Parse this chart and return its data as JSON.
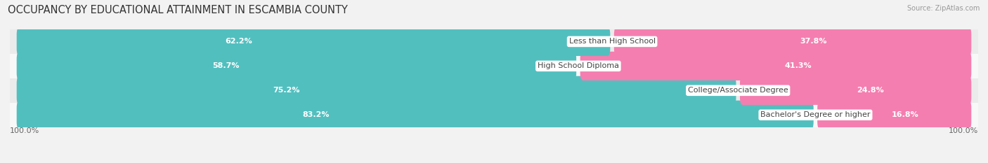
{
  "title": "OCCUPANCY BY EDUCATIONAL ATTAINMENT IN ESCAMBIA COUNTY",
  "source": "Source: ZipAtlas.com",
  "categories": [
    "Less than High School",
    "High School Diploma",
    "College/Associate Degree",
    "Bachelor's Degree or higher"
  ],
  "owner_pct": [
    62.2,
    58.7,
    75.2,
    83.2
  ],
  "renter_pct": [
    37.8,
    41.3,
    24.8,
    16.8
  ],
  "owner_color": "#52bfbf",
  "renter_color": "#f47eb0",
  "row_bg_colors": [
    "#ebebeb",
    "#f8f8f8",
    "#ebebeb",
    "#f8f8f8"
  ],
  "title_fontsize": 10.5,
  "label_fontsize": 8.0,
  "pct_fontsize": 8.0,
  "legend_fontsize": 8.5,
  "axis_label_left": "100.0%",
  "axis_label_right": "100.0%",
  "bar_height": 0.58,
  "figsize": [
    14.06,
    2.33
  ],
  "dpi": 100
}
